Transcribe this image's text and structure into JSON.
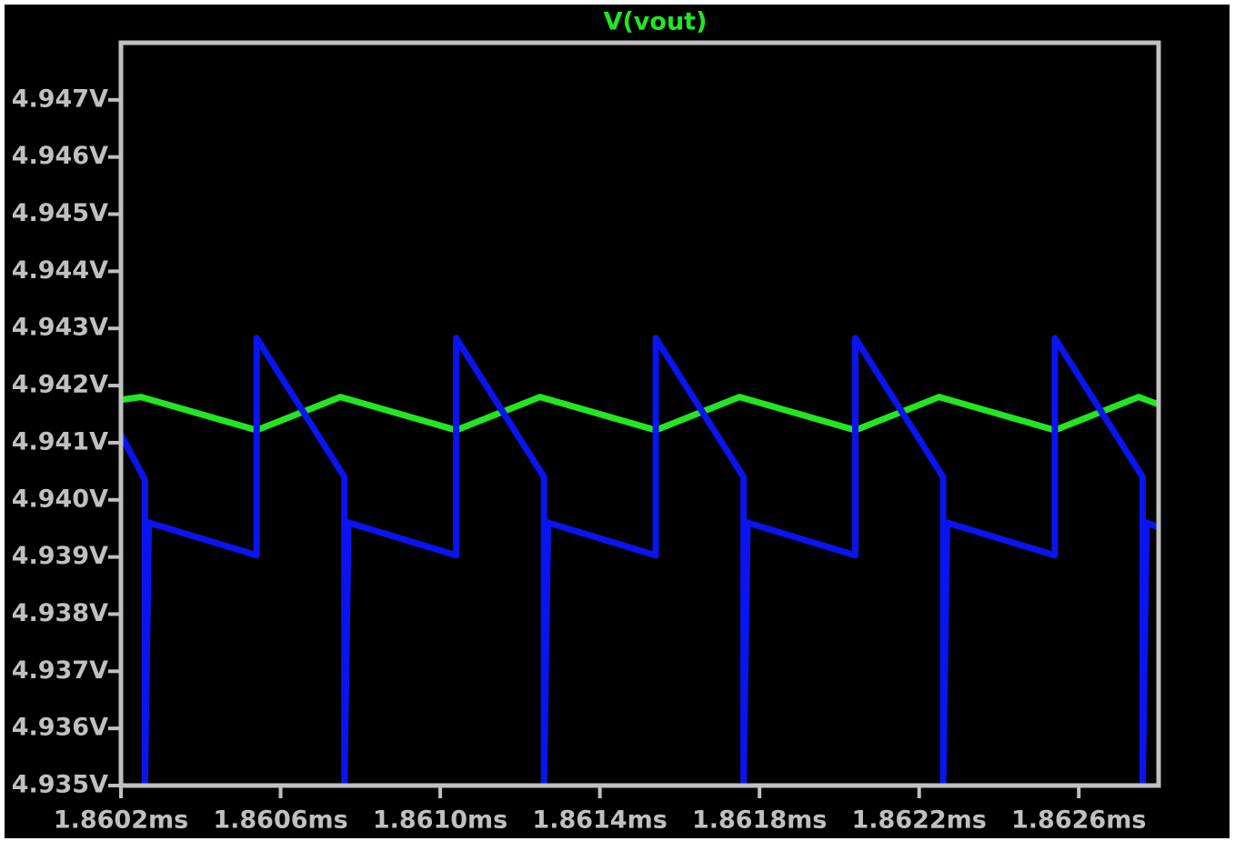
{
  "chart_data": {
    "type": "line",
    "background": "#000000",
    "frame_color": "#c0c0c0",
    "grid": false,
    "xlim": [
      1.8602,
      1.8628
    ],
    "ylim": [
      4.935,
      4.948
    ],
    "xticks": [
      {
        "value": 1.8602,
        "label": "1.8602ms"
      },
      {
        "value": 1.8606,
        "label": "1.8606ms"
      },
      {
        "value": 1.861,
        "label": "1.8610ms"
      },
      {
        "value": 1.8614,
        "label": "1.8614ms"
      },
      {
        "value": 1.8618,
        "label": "1.8618ms"
      },
      {
        "value": 1.8622,
        "label": "1.8622ms"
      },
      {
        "value": 1.8626,
        "label": "1.8626ms"
      }
    ],
    "yticks": [
      {
        "value": 4.947,
        "label": "4.947V"
      },
      {
        "value": 4.946,
        "label": "4.946V"
      },
      {
        "value": 4.945,
        "label": "4.945V"
      },
      {
        "value": 4.944,
        "label": "4.944V"
      },
      {
        "value": 4.943,
        "label": "4.943V"
      },
      {
        "value": 4.942,
        "label": "4.942V"
      },
      {
        "value": 4.941,
        "label": "4.941V"
      },
      {
        "value": 4.94,
        "label": "4.940V"
      },
      {
        "value": 4.939,
        "label": "4.939V"
      },
      {
        "value": 4.938,
        "label": "4.938V"
      },
      {
        "value": 4.937,
        "label": "4.937V"
      },
      {
        "value": 4.936,
        "label": "4.936V"
      },
      {
        "value": 4.935,
        "label": "4.935V"
      }
    ],
    "series": [
      {
        "name": "V(vout)",
        "color": "#22e622",
        "x": [
          1.8602,
          1.86025,
          1.86054,
          1.86075,
          1.86104,
          1.86125,
          1.86154,
          1.86175,
          1.86204,
          1.86225,
          1.86254,
          1.86275,
          1.8628
        ],
        "values": [
          4.94175,
          4.9418,
          4.94122,
          4.9418,
          4.94122,
          4.9418,
          4.94122,
          4.9418,
          4.94122,
          4.9418,
          4.94122,
          4.9418,
          4.94167
        ]
      },
      {
        "color": "#0a14f0",
        "x": [
          1.8602,
          1.86026,
          1.86026,
          1.86027,
          1.86054,
          1.86054,
          1.86076,
          1.86076,
          1.86077,
          1.86104,
          1.86104,
          1.86126,
          1.86126,
          1.86127,
          1.86154,
          1.86154,
          1.86176,
          1.86176,
          1.86177,
          1.86204,
          1.86204,
          1.86226,
          1.86226,
          1.86227,
          1.86254,
          1.86254,
          1.86276,
          1.86276,
          1.86277,
          1.8628
        ],
        "values": [
          4.94114,
          4.94035,
          4.935,
          4.9396,
          4.93903,
          4.94283,
          4.9404,
          4.935,
          4.9396,
          4.93903,
          4.94283,
          4.9404,
          4.935,
          4.9396,
          4.93903,
          4.94283,
          4.9404,
          4.935,
          4.9396,
          4.93903,
          4.94283,
          4.9404,
          4.935,
          4.9396,
          4.93903,
          4.94283,
          4.9404,
          4.935,
          4.9396,
          4.93952
        ]
      }
    ]
  }
}
